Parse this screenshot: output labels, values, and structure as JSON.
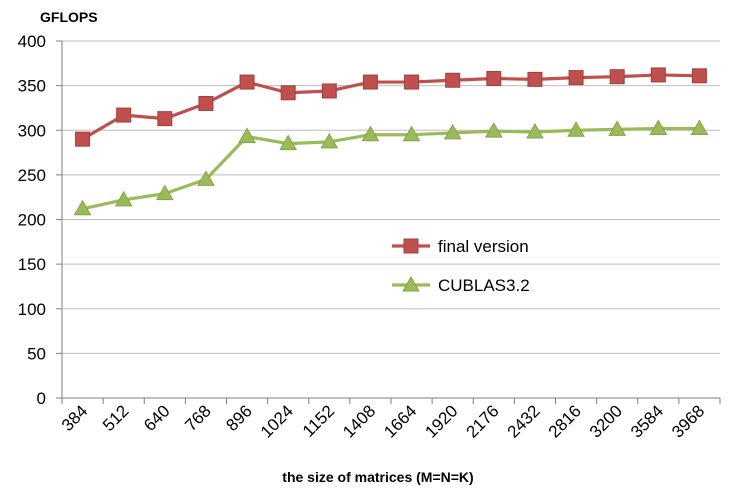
{
  "chart_data": {
    "type": "line",
    "title": "",
    "ylabel": "GFLOPS",
    "xlabel": "the size of matrices (M=N=K)",
    "categories": [
      "384",
      "512",
      "640",
      "768",
      "896",
      "1024",
      "1152",
      "1408",
      "1664",
      "1920",
      "2176",
      "2432",
      "2816",
      "3200",
      "3584",
      "3968"
    ],
    "ylim": [
      0,
      400
    ],
    "yticks": [
      0,
      50,
      100,
      150,
      200,
      250,
      300,
      350,
      400
    ],
    "grid": true,
    "legend_position": "center-right",
    "series": [
      {
        "name": "final version",
        "color": "#c0504d",
        "marker": "square",
        "values": [
          290,
          317,
          313,
          330,
          354,
          342,
          344,
          354,
          354,
          356,
          358,
          357,
          359,
          360,
          362,
          361
        ]
      },
      {
        "name": "CUBLAS3.2",
        "color": "#9bbb59",
        "marker": "triangle",
        "values": [
          212,
          222,
          229,
          245,
          293,
          285,
          287,
          295,
          295,
          297,
          299,
          298,
          300,
          301,
          302,
          302
        ]
      }
    ]
  }
}
